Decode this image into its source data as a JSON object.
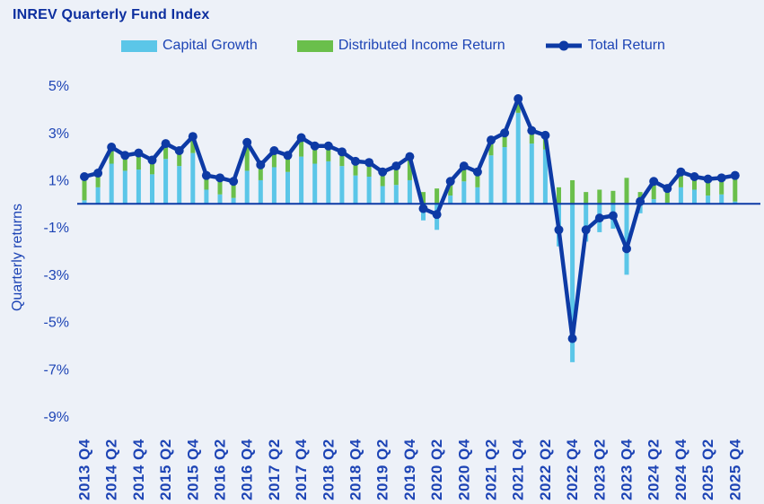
{
  "title": "INREV Quarterly Fund Index",
  "y_axis": {
    "title": "Quarterly returns",
    "tick_labels": [
      "5%",
      "3%",
      "1%",
      "-1%",
      "-3%",
      "-5%",
      "-7%",
      "-9%"
    ]
  },
  "chart_data": {
    "type": "bar",
    "stacked": true,
    "overlay": "line",
    "title": "INREV Quarterly Fund Index",
    "xlabel": "",
    "ylabel": "Quarterly returns",
    "ylim": [
      -9.9,
      5.5
    ],
    "yticks_percent": [
      5,
      3,
      1,
      -1,
      -3,
      -5,
      -7,
      -9
    ],
    "grid": false,
    "legend_position": "top",
    "categories": [
      "2013 Q4",
      "2014 Q1",
      "2014 Q2",
      "2014 Q3",
      "2014 Q4",
      "2015 Q1",
      "2015 Q2",
      "2015 Q3",
      "2015 Q4",
      "2016 Q1",
      "2016 Q2",
      "2016 Q3",
      "2016 Q4",
      "2017 Q1",
      "2017 Q2",
      "2017 Q3",
      "2017 Q4",
      "2018 Q1",
      "2018 Q2",
      "2018 Q3",
      "2018 Q4",
      "2019 Q1",
      "2019 Q2",
      "2019 Q3",
      "2019 Q4",
      "2020 Q1",
      "2020 Q2",
      "2020 Q3",
      "2020 Q4",
      "2021 Q1",
      "2021 Q2",
      "2021 Q3",
      "2021 Q4",
      "2022 Q1",
      "2022 Q2",
      "2022 Q3",
      "2022 Q4",
      "2023 Q1",
      "2023 Q2",
      "2023 Q3",
      "2023 Q4",
      "2024 Q1",
      "2024 Q2",
      "2024 Q3",
      "2024 Q4",
      "2025 Q1",
      "2025 Q2",
      "2025 Q3",
      "2025 Q4"
    ],
    "x_tick_labels_shown_every": 2,
    "x_tick_labels": [
      "2013 Q4",
      "2014 Q2",
      "2014 Q4",
      "2015 Q2",
      "2015 Q4",
      "2016 Q2",
      "2016 Q4",
      "2017 Q2",
      "2017 Q4",
      "2018 Q2",
      "2018 Q4",
      "2019 Q2",
      "2019 Q4",
      "2020 Q2",
      "2020 Q4",
      "2021 Q2",
      "2021 Q4",
      "2022 Q2",
      "2022 Q4",
      "2023 Q2",
      "2023 Q4",
      "2024 Q2",
      "2024 Q4",
      "2025 Q2",
      "2025 Q4"
    ],
    "series": [
      {
        "name": "Capital Growth",
        "type": "bar",
        "color": "#5bc6e8",
        "values": [
          0.15,
          0.7,
          1.7,
          1.4,
          1.45,
          1.25,
          1.9,
          1.6,
          2.15,
          0.6,
          0.4,
          0.25,
          1.4,
          1.0,
          1.55,
          1.35,
          2.0,
          1.7,
          1.8,
          1.6,
          1.2,
          1.15,
          0.75,
          0.8,
          1.0,
          -0.7,
          -1.1,
          0.35,
          0.95,
          0.7,
          2.05,
          2.4,
          3.85,
          2.55,
          2.3,
          -1.8,
          -6.7,
          -1.6,
          -1.2,
          -1.05,
          -3.0,
          -0.4,
          0.2,
          0.05,
          0.7,
          0.6,
          0.35,
          0.4,
          0.1
        ]
      },
      {
        "name": "Distributed Income Return",
        "type": "bar",
        "color": "#6abf4b",
        "values": [
          1.0,
          0.6,
          0.7,
          0.65,
          0.7,
          0.6,
          0.65,
          0.65,
          0.7,
          0.6,
          0.7,
          0.7,
          1.2,
          0.65,
          0.7,
          0.7,
          0.8,
          0.75,
          0.65,
          0.6,
          0.6,
          0.6,
          0.6,
          0.8,
          1.0,
          0.5,
          0.65,
          0.6,
          0.65,
          0.65,
          0.65,
          0.6,
          0.6,
          0.55,
          0.6,
          0.7,
          1.0,
          0.5,
          0.6,
          0.55,
          1.1,
          0.5,
          0.75,
          0.6,
          0.65,
          0.55,
          0.7,
          0.7,
          1.1
        ]
      },
      {
        "name": "Total Return",
        "type": "line",
        "color": "#0d3aa5",
        "values": [
          1.15,
          1.3,
          2.4,
          2.05,
          2.15,
          1.85,
          2.55,
          2.25,
          2.85,
          1.2,
          1.1,
          0.95,
          2.6,
          1.65,
          2.25,
          2.05,
          2.8,
          2.45,
          2.45,
          2.2,
          1.8,
          1.75,
          1.35,
          1.6,
          2.0,
          -0.2,
          -0.45,
          0.95,
          1.6,
          1.35,
          2.7,
          3.0,
          4.45,
          3.1,
          2.9,
          -1.1,
          -5.7,
          -1.1,
          -0.6,
          -0.5,
          -1.9,
          0.1,
          0.95,
          0.65,
          1.35,
          1.15,
          1.05,
          1.1,
          1.2
        ]
      }
    ],
    "colors": {
      "background": "#edf1f8",
      "axis_text": "#1d44b5",
      "title_text": "#0d2f9f",
      "zero_line": "#0d3aa5"
    }
  }
}
